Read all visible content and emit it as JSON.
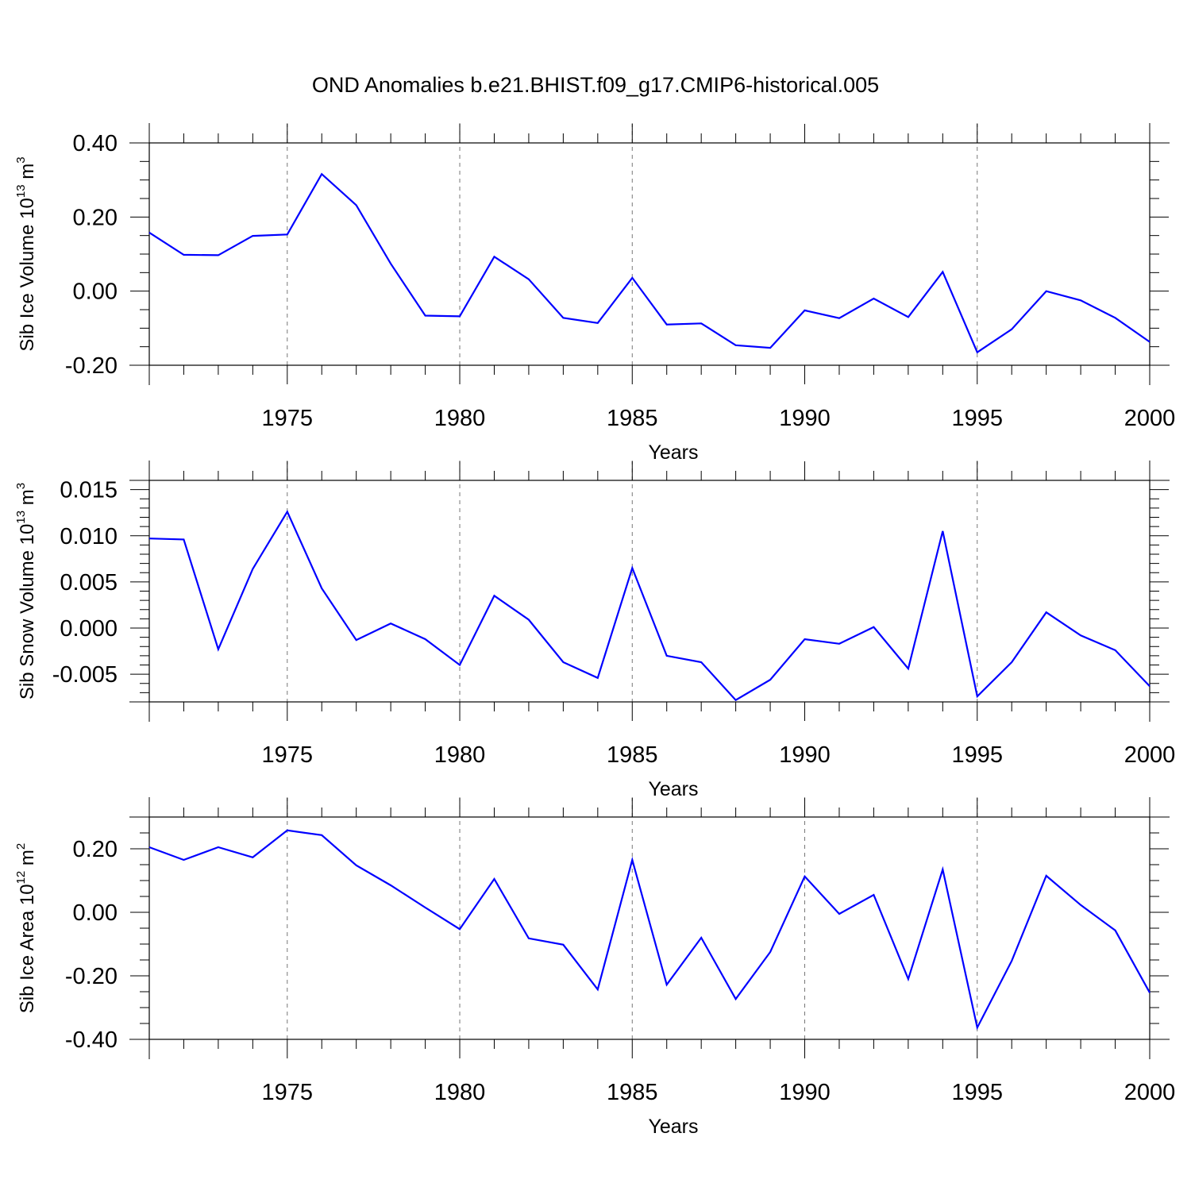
{
  "title": "OND Anomalies b.e21.BHIST.f09_g17.CMIP6-historical.005",
  "colors": {
    "series": "#0000ff",
    "axis": "#000000",
    "grid": "#777777"
  },
  "chart_data": [
    {
      "type": "line",
      "xlabel": "Years",
      "ylabel_text": "Sib Ice Volume 10",
      "ylabel_exp": "13",
      "ylabel_unit": " m",
      "ylabel_unit_exp": "3",
      "xlim": [
        1971,
        2000
      ],
      "ylim": [
        -0.2,
        0.4
      ],
      "yticks": [
        -0.2,
        0.0,
        0.2,
        0.4
      ],
      "ytick_labels": [
        "-0.20",
        "0.00",
        "0.20",
        "0.40"
      ],
      "yminor_step": 0.05,
      "xticks": [
        1975,
        1980,
        1985,
        1990,
        1995,
        2000
      ],
      "xtick_labels": [
        "1975",
        "1980",
        "1985",
        "1990",
        "1995",
        "2000"
      ],
      "grid_x": [
        1975,
        1980,
        1985,
        1995
      ],
      "series": [
        {
          "name": "Sib Ice Volume",
          "x": [
            1971,
            1972,
            1973,
            1974,
            1975,
            1976,
            1977,
            1978,
            1979,
            1980,
            1981,
            1982,
            1983,
            1984,
            1985,
            1986,
            1987,
            1988,
            1989,
            1990,
            1991,
            1992,
            1993,
            1994,
            1995,
            1996,
            1997,
            1998,
            1999,
            2000
          ],
          "values": [
            0.158,
            0.098,
            0.097,
            0.149,
            0.153,
            0.316,
            0.232,
            0.074,
            -0.066,
            -0.068,
            0.093,
            0.032,
            -0.072,
            -0.086,
            0.036,
            -0.09,
            -0.087,
            -0.146,
            -0.153,
            -0.052,
            -0.073,
            -0.02,
            -0.07,
            0.052,
            -0.165,
            -0.103,
            0.0,
            -0.025,
            -0.072,
            -0.137
          ]
        }
      ]
    },
    {
      "type": "line",
      "xlabel": "Years",
      "ylabel_text": "Sib Snow Volume 10",
      "ylabel_exp": "13",
      "ylabel_unit": " m",
      "ylabel_unit_exp": "3",
      "xlim": [
        1971,
        2000
      ],
      "ylim": [
        -0.008,
        0.016
      ],
      "yticks": [
        -0.005,
        0.0,
        0.005,
        0.01,
        0.015
      ],
      "ytick_labels": [
        "-0.005",
        "0.000",
        "0.005",
        "0.010",
        "0.015"
      ],
      "yminor_step": 0.001,
      "xticks": [
        1975,
        1980,
        1985,
        1990,
        1995,
        2000
      ],
      "xtick_labels": [
        "1975",
        "1980",
        "1985",
        "1990",
        "1995",
        "2000"
      ],
      "grid_x": [
        1975,
        1980,
        1985,
        1995
      ],
      "series": [
        {
          "name": "Sib Snow Volume",
          "x": [
            1971,
            1972,
            1973,
            1974,
            1975,
            1976,
            1977,
            1978,
            1979,
            1980,
            1981,
            1982,
            1983,
            1984,
            1985,
            1986,
            1987,
            1988,
            1989,
            1990,
            1991,
            1992,
            1993,
            1994,
            1995,
            1996,
            1997,
            1998,
            1999,
            2000
          ],
          "values": [
            0.0097,
            0.0096,
            -0.0023,
            0.0064,
            0.0126,
            0.0043,
            -0.0013,
            0.0005,
            -0.0012,
            -0.004,
            0.0035,
            0.0009,
            -0.0037,
            -0.0054,
            0.0065,
            -0.003,
            -0.0037,
            -0.0078,
            -0.0056,
            -0.0012,
            -0.0017,
            0.0001,
            -0.0044,
            0.0105,
            -0.0074,
            -0.0037,
            0.0017,
            -0.0008,
            -0.0024,
            -0.0063
          ]
        }
      ]
    },
    {
      "type": "line",
      "xlabel": "Years",
      "ylabel_text": "Sib Ice Area 10",
      "ylabel_exp": "12",
      "ylabel_unit": " m",
      "ylabel_unit_exp": "2",
      "xlim": [
        1971,
        2000
      ],
      "ylim": [
        -0.4,
        0.3
      ],
      "yticks": [
        -0.4,
        -0.2,
        0.0,
        0.2
      ],
      "ytick_labels": [
        "-0.40",
        "-0.20",
        "0.00",
        "0.20"
      ],
      "yminor_step": 0.05,
      "xticks": [
        1975,
        1980,
        1985,
        1990,
        1995,
        2000
      ],
      "xtick_labels": [
        "1975",
        "1980",
        "1985",
        "1990",
        "1995",
        "2000"
      ],
      "grid_x": [
        1975,
        1980,
        1985,
        1990,
        1995
      ],
      "series": [
        {
          "name": "Sib Ice Area",
          "x": [
            1971,
            1972,
            1973,
            1974,
            1975,
            1976,
            1977,
            1978,
            1979,
            1980,
            1981,
            1982,
            1983,
            1984,
            1985,
            1986,
            1987,
            1988,
            1989,
            1990,
            1991,
            1992,
            1993,
            1994,
            1995,
            1996,
            1997,
            1998,
            1999,
            2000
          ],
          "values": [
            0.205,
            0.165,
            0.205,
            0.173,
            0.258,
            0.243,
            0.148,
            0.085,
            0.015,
            -0.053,
            0.105,
            -0.082,
            -0.102,
            -0.243,
            0.165,
            -0.228,
            -0.08,
            -0.273,
            -0.125,
            0.113,
            -0.005,
            0.055,
            -0.21,
            0.135,
            -0.363,
            -0.153,
            0.115,
            0.023,
            -0.057,
            -0.253
          ]
        }
      ]
    }
  ]
}
